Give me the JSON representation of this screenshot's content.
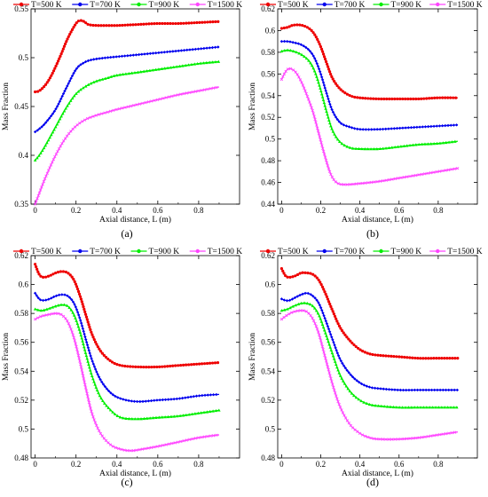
{
  "figure": {
    "legend_labels": [
      "T=500 K",
      "T=700 K",
      "T=900 K",
      "T=1500 K"
    ],
    "series_colors": [
      "#ee0000",
      "#0000ee",
      "#00ee00",
      "#ff44ff"
    ]
  },
  "chart_data": [
    {
      "type": "line",
      "panel_label": "(a)",
      "xlabel": "Axial distance, L (m)",
      "ylabel": "Mass Fraction",
      "xlim": [
        -0.02,
        1.0
      ],
      "ylim": [
        0.35,
        0.55
      ],
      "xticks": [
        0,
        0.2,
        0.4,
        0.6,
        0.8
      ],
      "xtick_labels": [
        "0",
        "0.2",
        "0.4",
        "0.6",
        "0.8"
      ],
      "yticks": [
        0.35,
        0.4,
        0.45,
        0.5,
        0.55
      ],
      "ytick_labels": [
        "0.35",
        "0.4",
        "0.45",
        "0.5",
        "0.55"
      ],
      "legend_position": "top",
      "series": [
        {
          "name": "T=500 K",
          "x": [
            0,
            0.02,
            0.05,
            0.08,
            0.12,
            0.16,
            0.2,
            0.22,
            0.24,
            0.26,
            0.3,
            0.35,
            0.4,
            0.5,
            0.6,
            0.7,
            0.8,
            0.9
          ],
          "y": [
            0.465,
            0.466,
            0.472,
            0.482,
            0.5,
            0.52,
            0.535,
            0.538,
            0.537,
            0.534,
            0.533,
            0.533,
            0.533,
            0.534,
            0.535,
            0.535,
            0.536,
            0.537
          ]
        },
        {
          "name": "T=700 K",
          "x": [
            0,
            0.02,
            0.05,
            0.1,
            0.15,
            0.2,
            0.24,
            0.28,
            0.35,
            0.4,
            0.5,
            0.6,
            0.7,
            0.8,
            0.9
          ],
          "y": [
            0.424,
            0.427,
            0.433,
            0.447,
            0.468,
            0.488,
            0.495,
            0.498,
            0.5,
            0.501,
            0.503,
            0.505,
            0.507,
            0.509,
            0.511
          ]
        },
        {
          "name": "T=900 K",
          "x": [
            0,
            0.02,
            0.05,
            0.1,
            0.15,
            0.2,
            0.25,
            0.3,
            0.35,
            0.4,
            0.5,
            0.6,
            0.7,
            0.8,
            0.9
          ],
          "y": [
            0.395,
            0.4,
            0.41,
            0.429,
            0.448,
            0.463,
            0.471,
            0.476,
            0.479,
            0.482,
            0.485,
            0.488,
            0.491,
            0.494,
            0.496
          ]
        },
        {
          "name": "T=1500 K",
          "x": [
            0,
            0.02,
            0.05,
            0.1,
            0.15,
            0.2,
            0.25,
            0.3,
            0.35,
            0.4,
            0.5,
            0.6,
            0.7,
            0.8,
            0.9
          ],
          "y": [
            0.35,
            0.361,
            0.377,
            0.4,
            0.418,
            0.43,
            0.437,
            0.441,
            0.444,
            0.447,
            0.452,
            0.457,
            0.462,
            0.466,
            0.47
          ]
        }
      ]
    },
    {
      "type": "line",
      "panel_label": "(b)",
      "xlabel": "Axial distance, L (m)",
      "ylabel": "Mass Fraction",
      "xlim": [
        -0.02,
        1.0
      ],
      "ylim": [
        0.44,
        0.62
      ],
      "xticks": [
        0,
        0.2,
        0.4,
        0.6,
        0.8
      ],
      "xtick_labels": [
        "0",
        "0.2",
        "0.4",
        "0.6",
        "0.8"
      ],
      "yticks": [
        0.44,
        0.46,
        0.48,
        0.5,
        0.52,
        0.54,
        0.56,
        0.58,
        0.6,
        0.62
      ],
      "ytick_labels": [
        "0.44",
        "0.46",
        "0.48",
        "0.5",
        "0.52",
        "0.54",
        "0.56",
        "0.58",
        "0.6",
        "0.62"
      ],
      "legend_position": "top",
      "series": [
        {
          "name": "T=500 K",
          "x": [
            0,
            0.03,
            0.06,
            0.1,
            0.14,
            0.17,
            0.2,
            0.23,
            0.26,
            0.3,
            0.35,
            0.4,
            0.5,
            0.6,
            0.7,
            0.8,
            0.9
          ],
          "y": [
            0.602,
            0.603,
            0.605,
            0.605,
            0.602,
            0.596,
            0.585,
            0.57,
            0.556,
            0.546,
            0.54,
            0.538,
            0.537,
            0.537,
            0.537,
            0.538,
            0.538
          ]
        },
        {
          "name": "T=700 K",
          "x": [
            0,
            0.03,
            0.06,
            0.1,
            0.14,
            0.17,
            0.2,
            0.23,
            0.26,
            0.3,
            0.35,
            0.4,
            0.5,
            0.6,
            0.7,
            0.8,
            0.9
          ],
          "y": [
            0.59,
            0.59,
            0.589,
            0.587,
            0.582,
            0.574,
            0.56,
            0.542,
            0.526,
            0.515,
            0.511,
            0.509,
            0.509,
            0.51,
            0.511,
            0.512,
            0.513
          ]
        },
        {
          "name": "T=900 K",
          "x": [
            0,
            0.03,
            0.06,
            0.1,
            0.14,
            0.17,
            0.2,
            0.23,
            0.26,
            0.3,
            0.35,
            0.4,
            0.5,
            0.6,
            0.7,
            0.8,
            0.9
          ],
          "y": [
            0.581,
            0.582,
            0.581,
            0.578,
            0.572,
            0.562,
            0.545,
            0.525,
            0.508,
            0.497,
            0.492,
            0.491,
            0.491,
            0.493,
            0.495,
            0.496,
            0.498
          ]
        },
        {
          "name": "T=1500 K",
          "x": [
            0,
            0.02,
            0.04,
            0.07,
            0.1,
            0.13,
            0.16,
            0.19,
            0.22,
            0.25,
            0.28,
            0.32,
            0.4,
            0.5,
            0.6,
            0.7,
            0.8,
            0.9
          ],
          "y": [
            0.555,
            0.562,
            0.565,
            0.562,
            0.553,
            0.54,
            0.525,
            0.505,
            0.485,
            0.468,
            0.46,
            0.458,
            0.459,
            0.461,
            0.464,
            0.467,
            0.47,
            0.473
          ]
        }
      ]
    },
    {
      "type": "line",
      "panel_label": "(c)",
      "xlabel": "Axial distance, L (m)",
      "ylabel": "Mass Fraction",
      "xlim": [
        -0.02,
        1.0
      ],
      "ylim": [
        0.48,
        0.62
      ],
      "xticks": [
        0,
        0.2,
        0.4,
        0.6,
        0.8
      ],
      "xtick_labels": [
        "0",
        "0.2",
        "0.4",
        "0.6",
        "0.8"
      ],
      "yticks": [
        0.48,
        0.5,
        0.52,
        0.54,
        0.56,
        0.58,
        0.6,
        0.62
      ],
      "ytick_labels": [
        "0.48",
        "0.5",
        "0.52",
        "0.54",
        "0.56",
        "0.58",
        "0.6",
        "0.62"
      ],
      "legend_position": "top",
      "series": [
        {
          "name": "T=500 K",
          "x": [
            0,
            0.02,
            0.04,
            0.07,
            0.1,
            0.13,
            0.16,
            0.19,
            0.22,
            0.25,
            0.28,
            0.32,
            0.37,
            0.42,
            0.5,
            0.6,
            0.7,
            0.8,
            0.9
          ],
          "y": [
            0.614,
            0.607,
            0.605,
            0.606,
            0.608,
            0.609,
            0.608,
            0.603,
            0.592,
            0.578,
            0.565,
            0.554,
            0.547,
            0.544,
            0.543,
            0.543,
            0.544,
            0.545,
            0.546
          ]
        },
        {
          "name": "T=700 K",
          "x": [
            0,
            0.02,
            0.04,
            0.07,
            0.1,
            0.13,
            0.16,
            0.19,
            0.22,
            0.25,
            0.28,
            0.32,
            0.37,
            0.42,
            0.5,
            0.6,
            0.7,
            0.8,
            0.9
          ],
          "y": [
            0.594,
            0.59,
            0.589,
            0.59,
            0.592,
            0.593,
            0.592,
            0.587,
            0.576,
            0.561,
            0.547,
            0.534,
            0.525,
            0.521,
            0.519,
            0.52,
            0.521,
            0.523,
            0.524
          ]
        },
        {
          "name": "T=900 K",
          "x": [
            0,
            0.03,
            0.06,
            0.1,
            0.13,
            0.16,
            0.19,
            0.22,
            0.25,
            0.28,
            0.32,
            0.37,
            0.42,
            0.5,
            0.6,
            0.7,
            0.8,
            0.9
          ],
          "y": [
            0.583,
            0.582,
            0.583,
            0.585,
            0.586,
            0.585,
            0.579,
            0.567,
            0.551,
            0.536,
            0.522,
            0.513,
            0.508,
            0.507,
            0.508,
            0.509,
            0.511,
            0.513
          ]
        },
        {
          "name": "T=1500 K",
          "x": [
            0,
            0.03,
            0.06,
            0.1,
            0.13,
            0.16,
            0.19,
            0.22,
            0.25,
            0.28,
            0.32,
            0.37,
            0.42,
            0.47,
            0.52,
            0.6,
            0.7,
            0.8,
            0.9
          ],
          "y": [
            0.576,
            0.578,
            0.579,
            0.58,
            0.579,
            0.574,
            0.563,
            0.546,
            0.527,
            0.51,
            0.497,
            0.489,
            0.486,
            0.485,
            0.486,
            0.488,
            0.491,
            0.494,
            0.496
          ]
        }
      ]
    },
    {
      "type": "line",
      "panel_label": "(d)",
      "xlabel": "Axial distance, L (m)",
      "ylabel": "Mass Fraction",
      "xlim": [
        -0.02,
        1.0
      ],
      "ylim": [
        0.48,
        0.62
      ],
      "xticks": [
        0,
        0.2,
        0.4,
        0.6,
        0.8
      ],
      "xtick_labels": [
        "0",
        "0.2",
        "0.4",
        "0.6",
        "0.8"
      ],
      "yticks": [
        0.48,
        0.5,
        0.52,
        0.54,
        0.56,
        0.58,
        0.6,
        0.62
      ],
      "ytick_labels": [
        "0.48",
        "0.5",
        "0.52",
        "0.54",
        "0.56",
        "0.58",
        "0.6",
        "0.62"
      ],
      "legend_position": "top",
      "series": [
        {
          "name": "T=500 K",
          "x": [
            0,
            0.02,
            0.04,
            0.07,
            0.1,
            0.13,
            0.16,
            0.19,
            0.22,
            0.26,
            0.3,
            0.35,
            0.4,
            0.45,
            0.5,
            0.6,
            0.7,
            0.8,
            0.9
          ],
          "y": [
            0.611,
            0.606,
            0.605,
            0.606,
            0.608,
            0.608,
            0.607,
            0.603,
            0.595,
            0.582,
            0.57,
            0.561,
            0.555,
            0.552,
            0.551,
            0.55,
            0.549,
            0.549,
            0.549
          ]
        },
        {
          "name": "T=700 K",
          "x": [
            0,
            0.02,
            0.04,
            0.07,
            0.1,
            0.13,
            0.16,
            0.19,
            0.22,
            0.26,
            0.3,
            0.35,
            0.4,
            0.45,
            0.5,
            0.6,
            0.7,
            0.8,
            0.9
          ],
          "y": [
            0.59,
            0.589,
            0.589,
            0.591,
            0.593,
            0.594,
            0.592,
            0.587,
            0.577,
            0.562,
            0.548,
            0.538,
            0.532,
            0.529,
            0.528,
            0.527,
            0.527,
            0.527,
            0.527
          ]
        },
        {
          "name": "T=900 K",
          "x": [
            0,
            0.03,
            0.06,
            0.1,
            0.13,
            0.16,
            0.19,
            0.22,
            0.26,
            0.3,
            0.35,
            0.4,
            0.45,
            0.5,
            0.6,
            0.7,
            0.8,
            0.9
          ],
          "y": [
            0.582,
            0.583,
            0.585,
            0.587,
            0.587,
            0.585,
            0.579,
            0.568,
            0.552,
            0.537,
            0.526,
            0.52,
            0.517,
            0.516,
            0.515,
            0.515,
            0.515,
            0.515
          ]
        },
        {
          "name": "T=1500 K",
          "x": [
            0,
            0.03,
            0.06,
            0.1,
            0.13,
            0.16,
            0.19,
            0.22,
            0.26,
            0.3,
            0.35,
            0.4,
            0.45,
            0.5,
            0.6,
            0.7,
            0.8,
            0.9
          ],
          "y": [
            0.576,
            0.579,
            0.581,
            0.582,
            0.581,
            0.576,
            0.566,
            0.551,
            0.531,
            0.515,
            0.503,
            0.497,
            0.494,
            0.493,
            0.493,
            0.494,
            0.496,
            0.498
          ]
        }
      ]
    }
  ]
}
